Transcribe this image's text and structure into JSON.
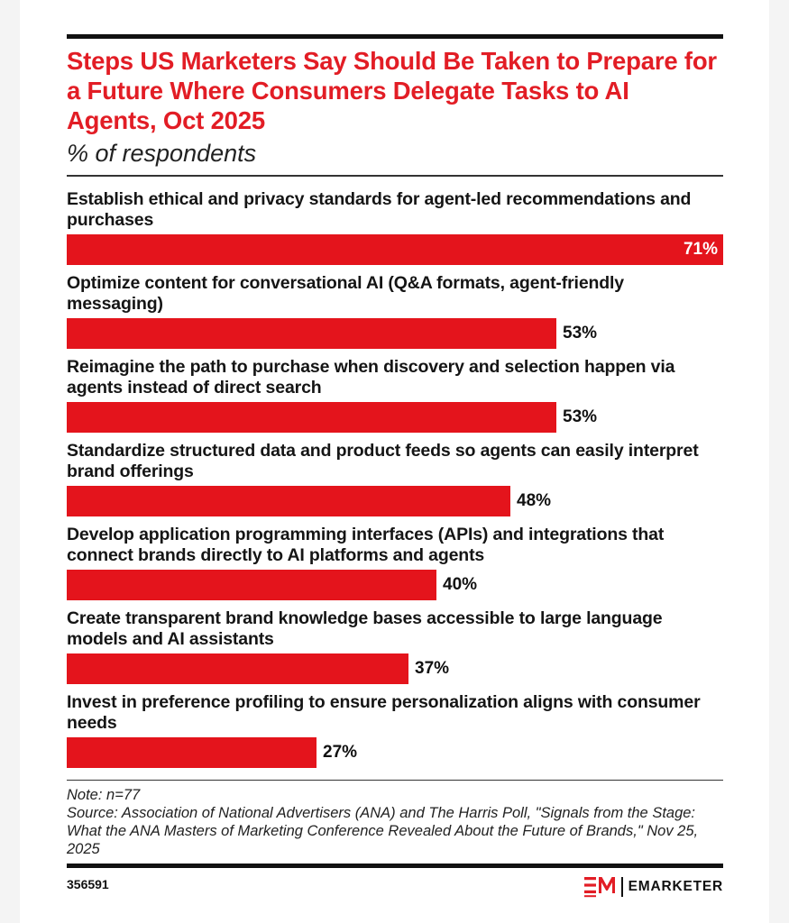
{
  "chart": {
    "title": "Steps US Marketers Say Should Be Taken to Prepare for a Future Where Consumers Delegate Tasks to AI Agents, Oct 2025",
    "subtitle": "% of respondents",
    "note": "Note: n=77",
    "source": "Source: Association of National Advertisers (ANA) and The Harris Poll, \"Signals from the Stage: What the ANA Masters of Marketing Conference Revealed About the Future of Brands,\" Nov 25, 2025",
    "chart_id": "356591",
    "brand": "EMARKETER",
    "colors": {
      "accent": "#e21d25",
      "bar": "#e4141c",
      "rule": "#111111"
    }
  },
  "chart_data": {
    "type": "bar",
    "orientation": "horizontal",
    "title": "Steps US Marketers Say Should Be Taken to Prepare for a Future Where Consumers Delegate Tasks to AI Agents, Oct 2025",
    "subtitle": "% of respondents",
    "categories": [
      "Establish ethical and privacy standards for agent-led recommendations and purchases",
      "Optimize content for conversational AI (Q&A formats, agent-friendly messaging)",
      "Reimagine the path to purchase when discovery and selection happen via agents instead of direct search",
      "Standardize structured data and product feeds so agents can easily interpret brand offerings",
      "Develop application programming interfaces (APIs) and integrations that connect brands directly to AI platforms and agents",
      "Create transparent brand knowledge bases accessible to large language models and AI assistants",
      "Invest in preference profiling to ensure personalization aligns with consumer needs"
    ],
    "values": [
      71,
      53,
      53,
      48,
      40,
      37,
      27
    ],
    "value_labels": [
      "71%",
      "53%",
      "53%",
      "48%",
      "40%",
      "37%",
      "27%"
    ],
    "unit": "%",
    "xlim": [
      0,
      71
    ],
    "grid": false,
    "legend": "none"
  }
}
